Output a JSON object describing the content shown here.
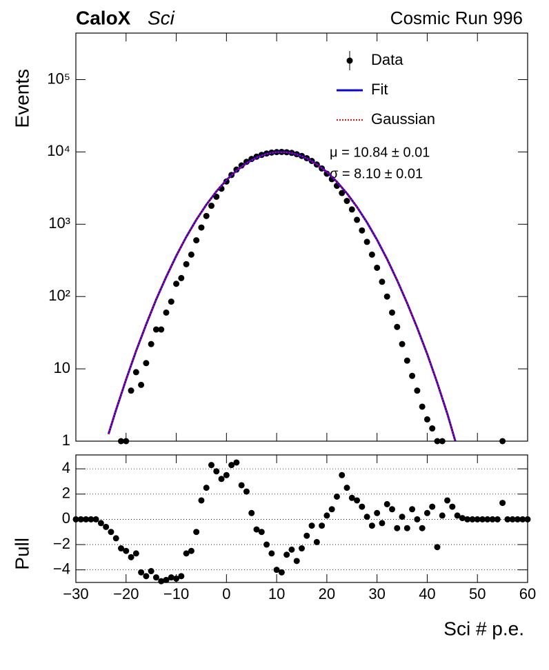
{
  "chart_data": [
    {
      "type": "scatter",
      "log_y": true,
      "title_bold": "CaloX",
      "title_italic": "Sci",
      "run_label": "Cosmic Run 996",
      "ylabel": "Events",
      "annotations": [
        "μ = 10.84 ± 0.01",
        "σ = 8.10 ± 0.01"
      ],
      "xlim": [
        -30,
        60
      ],
      "ylim": [
        1,
        440000
      ],
      "yticks": [
        1,
        10,
        {
          "value": 100,
          "label": "10²"
        },
        {
          "value": 1000,
          "label": "10³"
        },
        {
          "value": 10000,
          "label": "10⁴"
        },
        {
          "value": 100000,
          "label": "10⁵"
        }
      ],
      "legend": "upper right",
      "series": [
        {
          "name": "Data",
          "color": "#000000",
          "style": "points",
          "x": [
            -21,
            -20,
            -19,
            -18,
            -17,
            -16,
            -15,
            -14,
            -13,
            -12,
            -11,
            -10,
            -9,
            -8,
            -7,
            -6,
            -5,
            -4,
            -3,
            -2,
            -1,
            0,
            1,
            2,
            3,
            4,
            5,
            6,
            7,
            8,
            9,
            10,
            11,
            12,
            13,
            14,
            15,
            16,
            17,
            18,
            19,
            20,
            21,
            22,
            23,
            24,
            25,
            26,
            27,
            28,
            29,
            30,
            31,
            32,
            33,
            34,
            35,
            36,
            37,
            38,
            39,
            40,
            41,
            42,
            43,
            55
          ],
          "values": [
            1,
            1,
            5,
            9,
            6,
            12,
            22,
            35,
            35,
            60,
            85,
            150,
            180,
            280,
            380,
            600,
            900,
            1300,
            1800,
            2400,
            3100,
            3900,
            4800,
            5700,
            6500,
            7300,
            8000,
            8600,
            9100,
            9500,
            9800,
            9950,
            10000,
            9900,
            9700,
            9300,
            8800,
            8200,
            7500,
            6700,
            5900,
            5000,
            4200,
            3400,
            2700,
            2100,
            1600,
            1150,
            820,
            570,
            380,
            250,
            160,
            100,
            60,
            38,
            22,
            13,
            8,
            5,
            3,
            2,
            1.5,
            1,
            1,
            1
          ]
        },
        {
          "name": "Fit",
          "color": "#0000ff",
          "style": "solid",
          "x": [
            -23.5,
            -22,
            -20,
            -18,
            -16,
            -14,
            -12,
            -10,
            -8,
            -6,
            -4,
            -2,
            0,
            2,
            4,
            6,
            8,
            10,
            12,
            14,
            16,
            18,
            20,
            22,
            24,
            26,
            28,
            30,
            32,
            34,
            36,
            38,
            40,
            42,
            44,
            45.6
          ],
          "values": [
            1.25,
            2.7,
            7.1,
            17.7,
            41,
            91,
            187,
            365,
            669,
            1153,
            1866,
            2846,
            4082,
            5515,
            6998,
            8363,
            9404,
            9946,
            9898,
            9267,
            8163,
            6765,
            5273,
            3871,
            2672,
            1734,
            1059,
            609,
            330,
            168,
            81,
            37,
            16,
            6.4,
            2.4,
            1
          ]
        },
        {
          "name": "Gaussian",
          "color": "#ff0000",
          "style": "dotted",
          "x": [
            -23.5,
            -22,
            -20,
            -18,
            -16,
            -14,
            -12,
            -10,
            -8,
            -6,
            -4,
            -2,
            0,
            2,
            4,
            6,
            8,
            10,
            12,
            14,
            16,
            18,
            20,
            22,
            24,
            26,
            28,
            30,
            32,
            34,
            36,
            38,
            40,
            42,
            44,
            45.6
          ],
          "values": [
            1.25,
            2.7,
            7.1,
            17.7,
            41,
            91,
            187,
            365,
            669,
            1153,
            1866,
            2846,
            4082,
            5515,
            6998,
            8363,
            9404,
            9946,
            9898,
            9267,
            8163,
            6765,
            5273,
            3871,
            2672,
            1734,
            1059,
            609,
            330,
            168,
            81,
            37,
            16,
            6.4,
            2.4,
            1
          ]
        }
      ]
    },
    {
      "type": "scatter",
      "ylabel": "Pull",
      "xlabel": "Sci # p.e.",
      "grid": true,
      "xlim": [
        -30,
        60
      ],
      "ylim": [
        -5,
        5.1
      ],
      "xticks": [
        {
          "value": -30,
          "label": "−30"
        },
        {
          "value": -20,
          "label": "−20"
        },
        {
          "value": -10,
          "label": "−10"
        },
        0,
        10,
        20,
        30,
        40,
        50,
        60
      ],
      "yticks": [
        {
          "value": -4,
          "label": "−4"
        },
        {
          "value": -2,
          "label": "−2"
        },
        0,
        2,
        4
      ],
      "series": [
        {
          "color": "#000000",
          "x": [
            -30,
            -29,
            -28,
            -27,
            -26,
            -25,
            -24,
            -23,
            -22,
            -21,
            -20,
            -19,
            -18,
            -17,
            -16,
            -15,
            -14,
            -13,
            -12,
            -11,
            -10,
            -9,
            -8,
            -7,
            -6,
            -5,
            -4,
            -3,
            -2,
            -1,
            0,
            1,
            2,
            3,
            4,
            5,
            6,
            7,
            8,
            9,
            10,
            11,
            12,
            13,
            14,
            15,
            16,
            17,
            18,
            19,
            20,
            21,
            22,
            23,
            24,
            25,
            26,
            27,
            28,
            29,
            30,
            31,
            32,
            33,
            34,
            35,
            36,
            37,
            38,
            39,
            40,
            41,
            42,
            43,
            44,
            45,
            46,
            47,
            48,
            49,
            50,
            51,
            52,
            53,
            54,
            55,
            56,
            57,
            58,
            59,
            60
          ],
          "values": [
            0,
            0,
            0,
            0,
            0,
            -0.3,
            -0.6,
            -1,
            -1.5,
            -2.3,
            -2.5,
            -3,
            -2.7,
            -4.2,
            -4.5,
            -4.1,
            -4.6,
            -4.9,
            -4.8,
            -4.6,
            -4.7,
            -4.5,
            -2.7,
            -2.5,
            -1,
            1.5,
            2.5,
            4.3,
            3.8,
            3.2,
            3.5,
            4.3,
            4.5,
            2.7,
            2.2,
            0.5,
            -0.8,
            -1,
            -2,
            -2.7,
            -4,
            -4.2,
            -2.8,
            -2.4,
            -3.3,
            -2.3,
            -1.3,
            -0.5,
            -1.8,
            -0.5,
            0.3,
            0.8,
            1.8,
            3.5,
            2.5,
            1.7,
            1.5,
            1,
            0.2,
            -0.5,
            0.5,
            -0.3,
            1.2,
            0.8,
            -0.7,
            0.2,
            -0.7,
            0.8,
            0,
            -0.7,
            0.5,
            1,
            -2.2,
            0.3,
            1.5,
            1,
            0.3,
            0.1,
            0,
            0,
            0,
            0,
            0,
            0,
            0,
            1.3,
            0,
            0,
            0,
            0,
            0
          ]
        }
      ]
    }
  ]
}
